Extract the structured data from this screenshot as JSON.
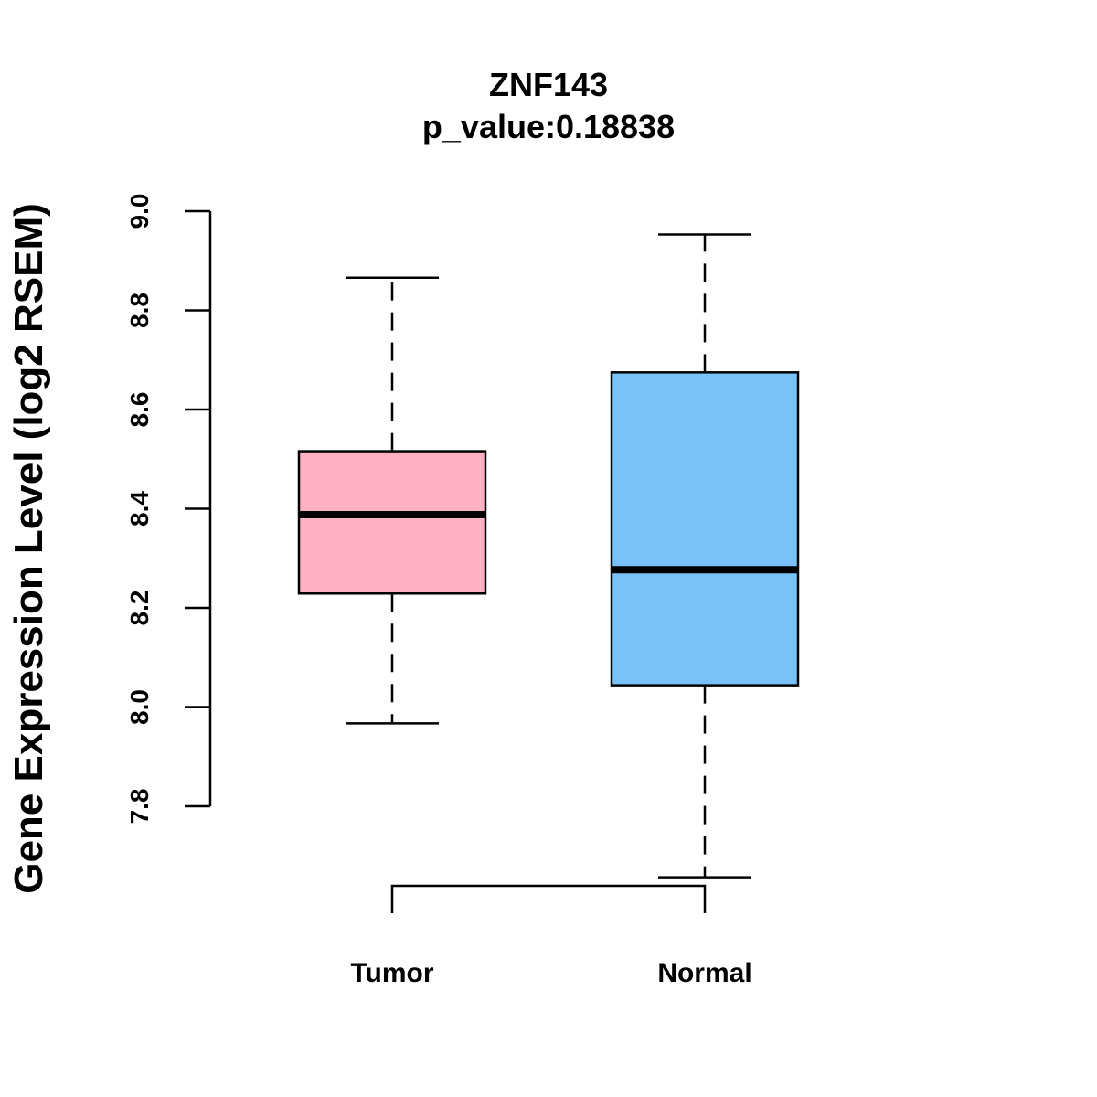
{
  "chart_data": {
    "type": "boxplot",
    "title": "ZNF143",
    "subtitle": "p_value:0.18838",
    "xlabel": "",
    "ylabel": "Gene Expression Level (log2 RSEM)",
    "ylim": [
      7.8,
      9.0
    ],
    "yticks": [
      "7.8",
      "8.0",
      "8.2",
      "8.4",
      "8.6",
      "8.8",
      "9.0"
    ],
    "categories": [
      "Tumor",
      "Normal"
    ],
    "series": [
      {
        "name": "Tumor",
        "color": "#FFB1C4",
        "whisker_low": 7.967,
        "q1": 8.229,
        "median": 8.388,
        "q3": 8.516,
        "whisker_high": 8.866
      },
      {
        "name": "Normal",
        "color": "#77C2F8",
        "whisker_low": 7.657,
        "q1": 8.044,
        "median": 8.277,
        "q3": 8.675,
        "whisker_high": 8.953
      }
    ],
    "grid": false,
    "legend": "none"
  }
}
